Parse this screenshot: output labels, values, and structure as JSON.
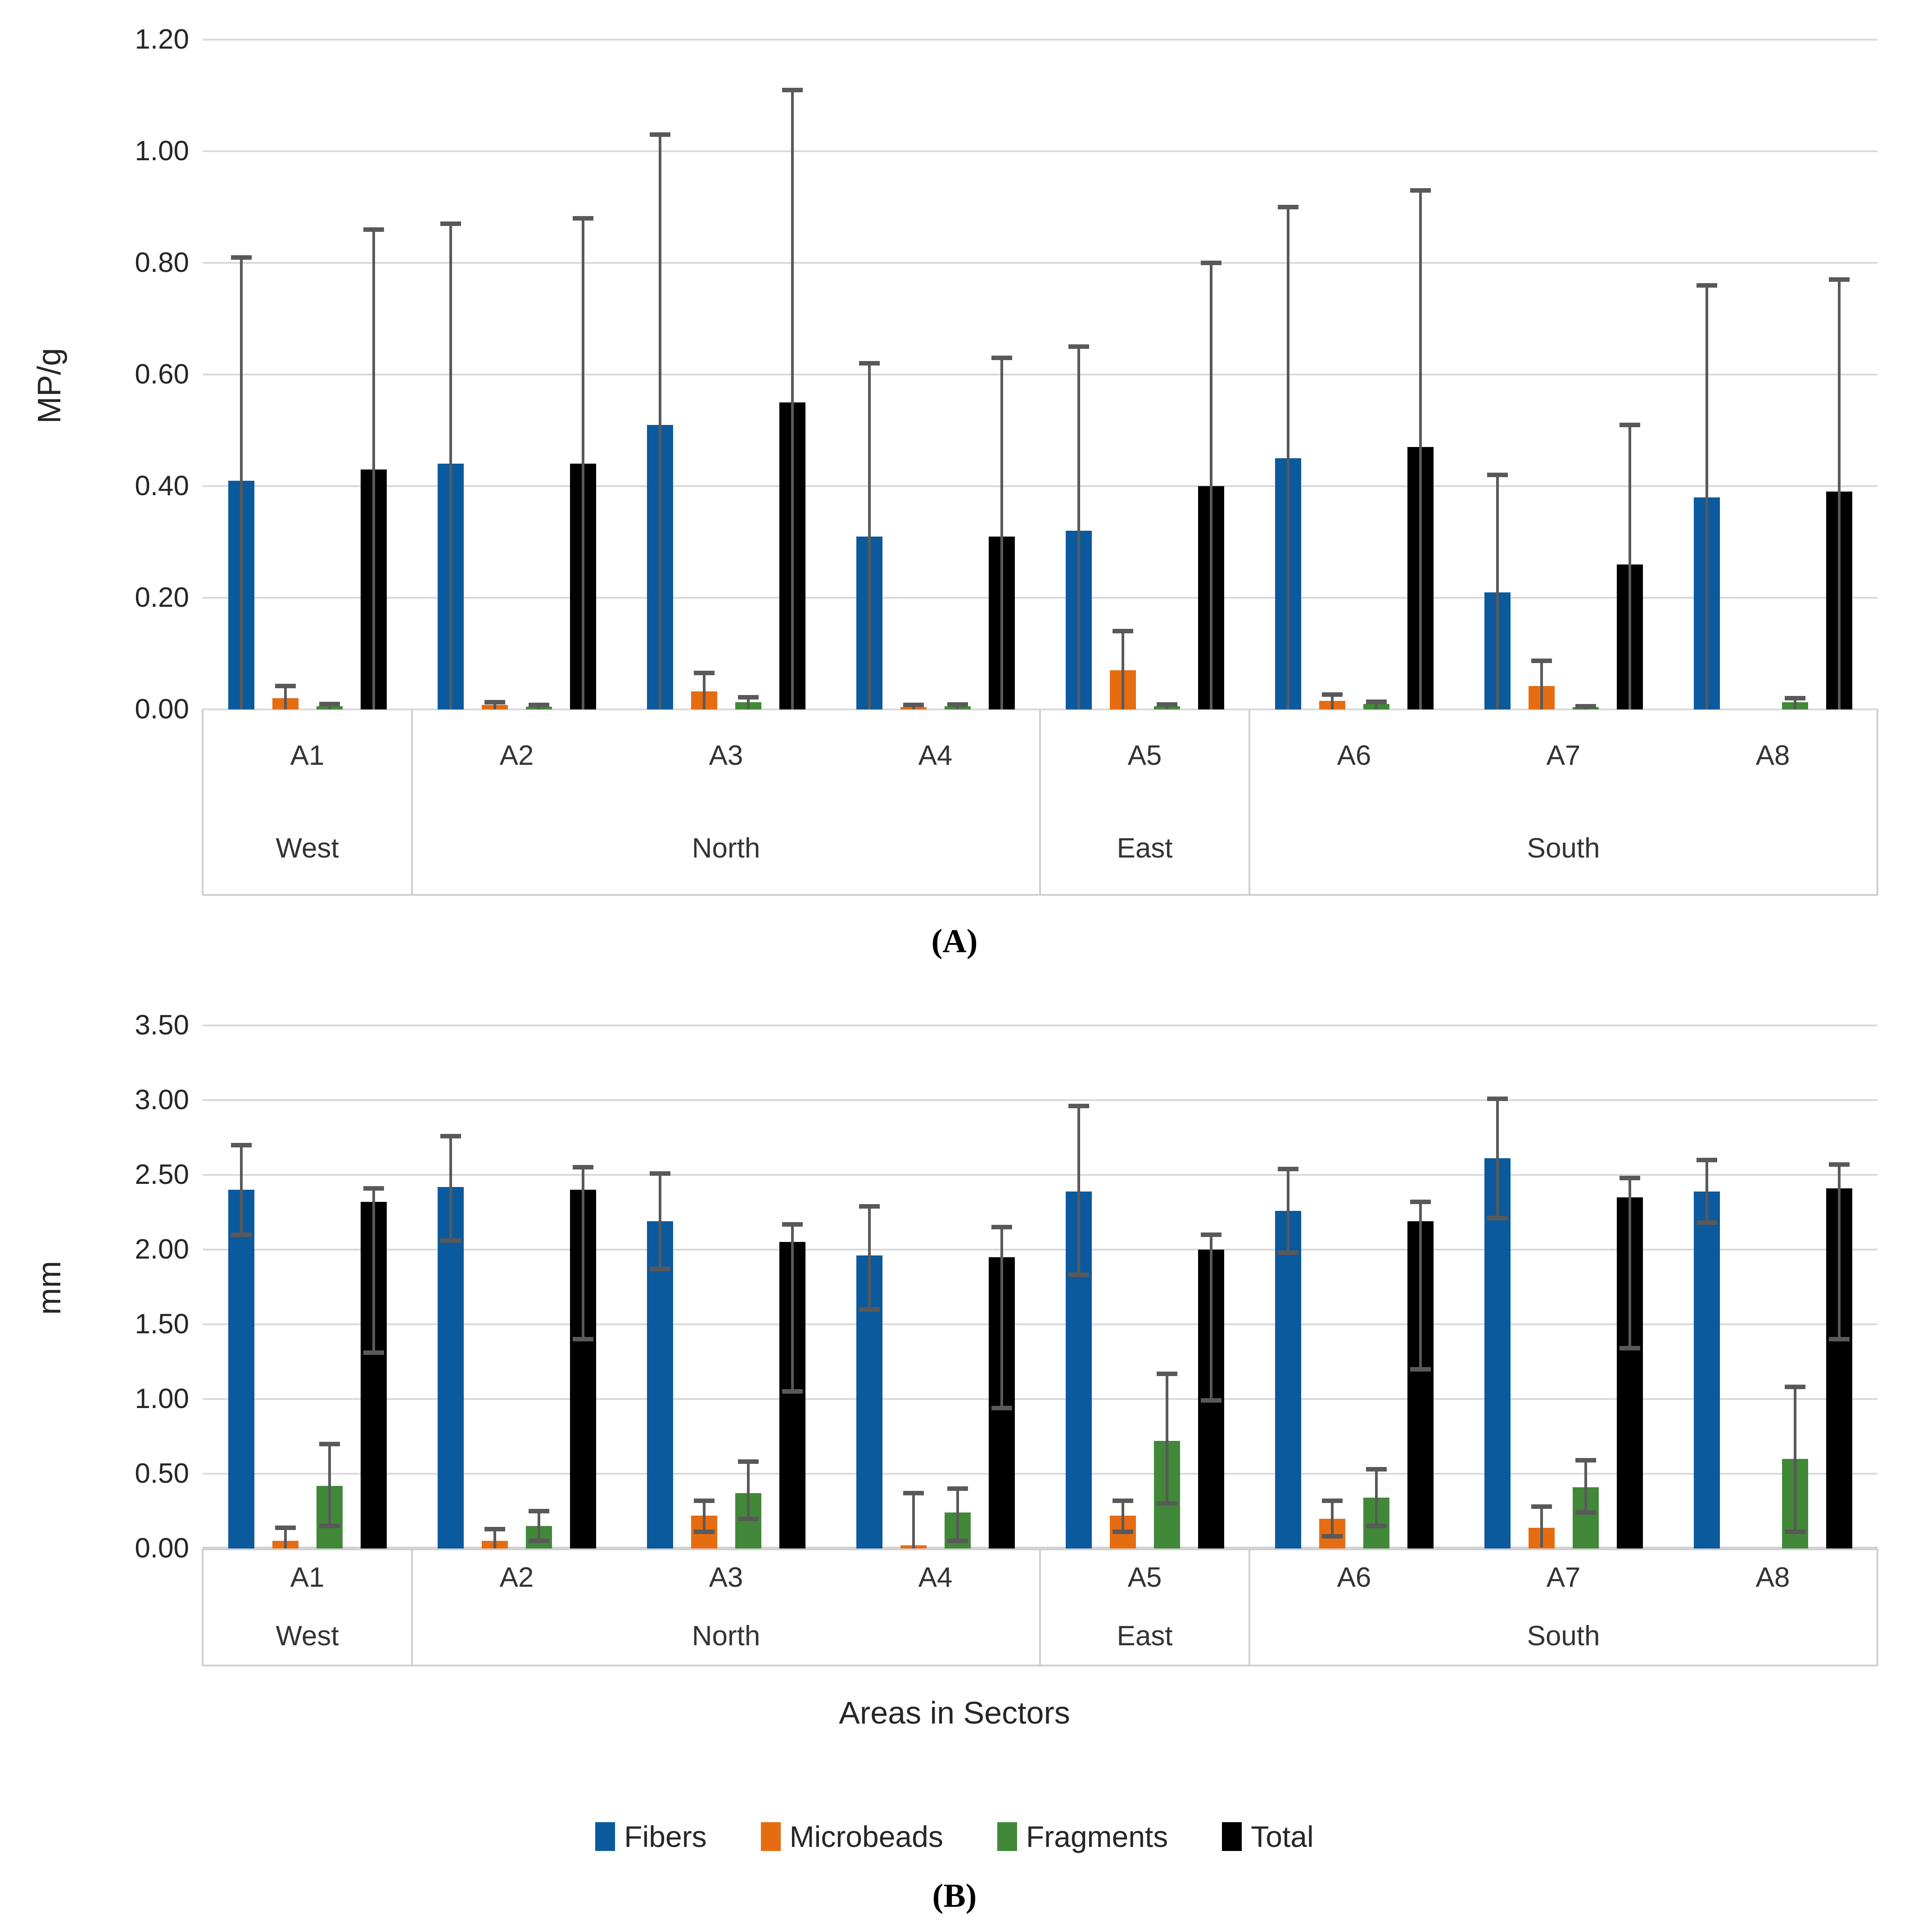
{
  "colors": {
    "fibers": "#0B5A9E",
    "microbeads": "#E66C12",
    "fragments": "#418839",
    "total": "#000000",
    "error_bar": "#595959",
    "gridline": "#D9D9D9"
  },
  "legend": {
    "items": [
      {
        "label": "Fibers",
        "color_key": "fibers"
      },
      {
        "label": "Microbeads",
        "color_key": "microbeads"
      },
      {
        "label": "Fragments",
        "color_key": "fragments"
      },
      {
        "label": "Total",
        "color_key": "total"
      }
    ]
  },
  "chart_data": [
    {
      "id": "A",
      "type": "bar",
      "caption": "(A)",
      "ylabel": "MP/g",
      "xlabel": "",
      "ylim": [
        0,
        1.2
      ],
      "ystep": 0.2,
      "ytick_labels": [
        "1.20",
        "1.00",
        "0.80",
        "0.60",
        "0.40",
        "0.20",
        "0.00"
      ],
      "grid": true,
      "categories": [
        "A1",
        "A2",
        "A3",
        "A4",
        "A5",
        "A6",
        "A7",
        "A8"
      ],
      "sectors": [
        {
          "label": "West",
          "span": 1
        },
        {
          "label": "North",
          "span": 3
        },
        {
          "label": "East",
          "span": 1
        },
        {
          "label": "South",
          "span": 3
        }
      ],
      "series": [
        {
          "name": "Fibers",
          "color_key": "fibers",
          "values": [
            0.41,
            0.44,
            0.51,
            0.31,
            0.32,
            0.45,
            0.21,
            0.38
          ],
          "err_top": [
            0.81,
            0.87,
            1.03,
            0.62,
            0.65,
            0.9,
            0.42,
            0.76
          ],
          "err_bot": [
            null,
            null,
            null,
            null,
            null,
            null,
            null,
            null
          ]
        },
        {
          "name": "Microbeads",
          "color_key": "microbeads",
          "values": [
            0.02,
            0.008,
            0.032,
            0.004,
            0.07,
            0.015,
            0.042,
            0
          ],
          "err_top": [
            0.042,
            0.013,
            0.065,
            0.008,
            0.14,
            0.027,
            0.087,
            null
          ],
          "err_bot": [
            null,
            null,
            null,
            null,
            null,
            null,
            null,
            null
          ]
        },
        {
          "name": "Fragments",
          "color_key": "fragments",
          "values": [
            0.006,
            0.005,
            0.013,
            0.006,
            0.006,
            0.01,
            0.004,
            0.013
          ],
          "err_top": [
            0.01,
            0.008,
            0.022,
            0.009,
            0.009,
            0.014,
            0.006,
            0.02
          ],
          "err_bot": [
            null,
            null,
            null,
            null,
            null,
            null,
            null,
            null
          ]
        },
        {
          "name": "Total",
          "color_key": "total",
          "values": [
            0.43,
            0.44,
            0.55,
            0.31,
            0.4,
            0.47,
            0.26,
            0.39
          ],
          "err_top": [
            0.86,
            0.88,
            1.11,
            0.63,
            0.8,
            0.93,
            0.51,
            0.77
          ],
          "err_bot": [
            null,
            null,
            null,
            null,
            null,
            null,
            null,
            null
          ]
        }
      ]
    },
    {
      "id": "B",
      "type": "bar",
      "caption": "(B)",
      "ylabel": "mm",
      "xlabel": "Areas in Sectors",
      "ylim": [
        0,
        3.5
      ],
      "ystep": 0.5,
      "ytick_labels": [
        "3.50",
        "3.00",
        "2.50",
        "2.00",
        "1.50",
        "1.00",
        "0.50",
        "0.00"
      ],
      "grid": true,
      "categories": [
        "A1",
        "A2",
        "A3",
        "A4",
        "A5",
        "A6",
        "A7",
        "A8"
      ],
      "sectors": [
        {
          "label": "West",
          "span": 1
        },
        {
          "label": "North",
          "span": 3
        },
        {
          "label": "East",
          "span": 1
        },
        {
          "label": "South",
          "span": 3
        }
      ],
      "series": [
        {
          "name": "Fibers",
          "color_key": "fibers",
          "values": [
            2.4,
            2.42,
            2.19,
            1.96,
            2.39,
            2.26,
            2.61,
            2.39
          ],
          "err_top": [
            2.7,
            2.76,
            2.51,
            2.29,
            2.96,
            2.54,
            3.01,
            2.6
          ],
          "err_bot": [
            2.1,
            2.06,
            1.87,
            1.6,
            1.83,
            1.98,
            2.21,
            2.18
          ]
        },
        {
          "name": "Microbeads",
          "color_key": "microbeads",
          "values": [
            0.05,
            0.05,
            0.22,
            0.02,
            0.22,
            0.2,
            0.14,
            0
          ],
          "err_top": [
            0.14,
            0.13,
            0.32,
            0.37,
            0.32,
            0.32,
            0.28,
            null
          ],
          "err_bot": [
            0.0,
            0.0,
            0.11,
            0.0,
            0.11,
            0.08,
            0.01,
            null
          ]
        },
        {
          "name": "Fragments",
          "color_key": "fragments",
          "values": [
            0.42,
            0.15,
            0.37,
            0.24,
            0.72,
            0.34,
            0.41,
            0.6
          ],
          "err_top": [
            0.7,
            0.25,
            0.58,
            0.4,
            1.17,
            0.53,
            0.59,
            1.08
          ],
          "err_bot": [
            0.15,
            0.05,
            0.2,
            0.05,
            0.3,
            0.15,
            0.24,
            0.11
          ]
        },
        {
          "name": "Total",
          "color_key": "total",
          "values": [
            2.32,
            2.4,
            2.05,
            1.95,
            2.0,
            2.19,
            2.35,
            2.41
          ],
          "err_top": [
            2.41,
            2.55,
            2.17,
            2.15,
            2.1,
            2.32,
            2.48,
            2.57
          ],
          "err_bot": [
            1.31,
            1.4,
            1.05,
            0.94,
            0.99,
            1.2,
            1.34,
            1.4
          ]
        }
      ]
    }
  ]
}
